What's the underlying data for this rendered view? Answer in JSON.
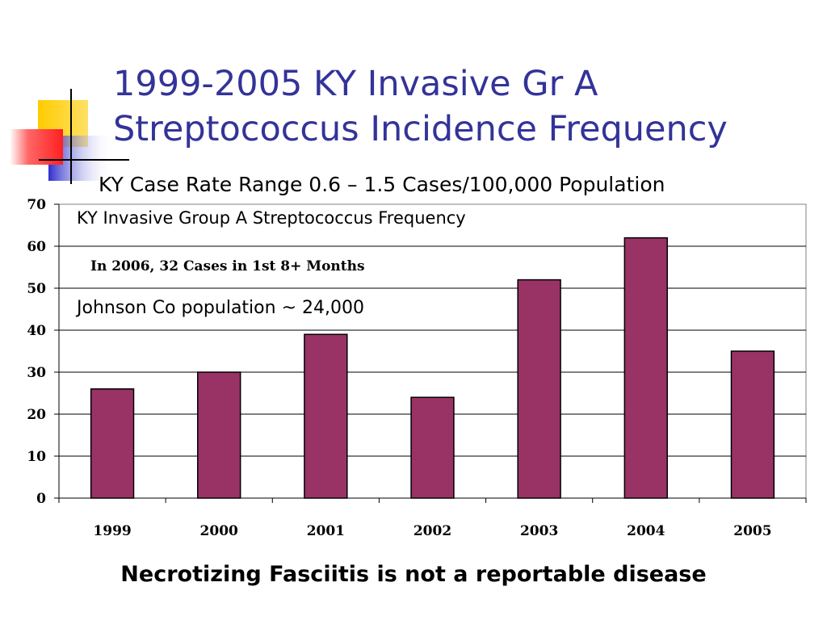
{
  "slide": {
    "title_line1": "1999-2005 KY Invasive Gr A",
    "title_line2": "Streptococcus  Incidence Frequency",
    "subtitle": "KY Case Rate Range 0.6 – 1.5 Cases/100,000 Population",
    "footer": "Necrotizing Fasciitis is not a reportable disease"
  },
  "chart_data": {
    "type": "bar",
    "title": "KY Invasive Group A Streptococcus Frequency",
    "categories": [
      "1999",
      "2000",
      "2001",
      "2002",
      "2003",
      "2004",
      "2005"
    ],
    "values": [
      26,
      30,
      39,
      24,
      52,
      62,
      35
    ],
    "ylim": [
      0,
      70
    ],
    "yticks": [
      0,
      10,
      20,
      30,
      40,
      50,
      60,
      70
    ],
    "xlabel": "",
    "ylabel": "",
    "grid": true,
    "bar_color": "#993366",
    "annotations": [
      "In 2006, 32 Cases in 1st 8+ Months",
      "Johnson Co population ~ 24,000"
    ]
  },
  "colors": {
    "title": "#333399",
    "bar": "#993366",
    "deco_yellow": "#ffcc00",
    "deco_blue": "#3333cc",
    "deco_red": "#ff3333"
  }
}
